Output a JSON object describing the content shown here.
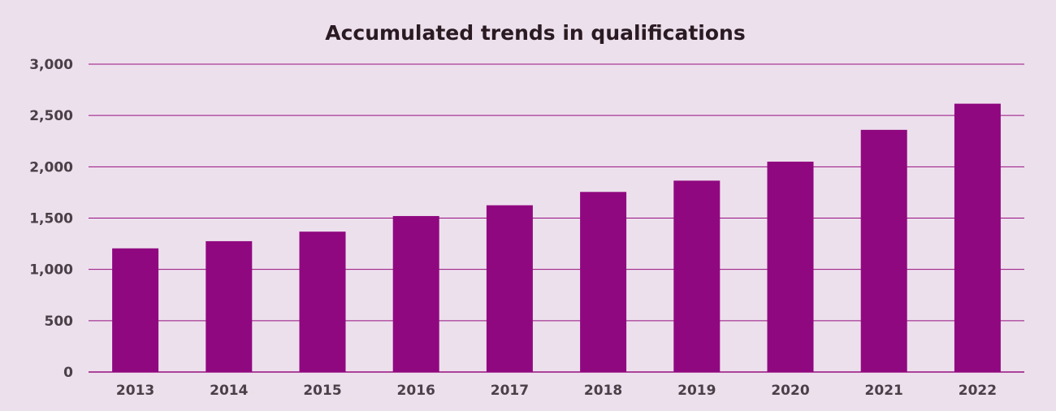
{
  "chart_data": {
    "type": "bar",
    "title": "Accumulated trends in qualifications",
    "xlabel": "",
    "ylabel": "",
    "categories": [
      "2013",
      "2014",
      "2015",
      "2016",
      "2017",
      "2018",
      "2019",
      "2020",
      "2021",
      "2022"
    ],
    "values": [
      1205,
      1275,
      1368,
      1520,
      1625,
      1755,
      1865,
      2050,
      2360,
      2615
    ],
    "ylim": [
      0,
      3000
    ],
    "yticks": [
      0,
      500,
      1000,
      1500,
      2000,
      2500,
      3000
    ],
    "ytick_labels": [
      "0",
      "500",
      "1,000",
      "1,500",
      "2,000",
      "2,500",
      "3,000"
    ],
    "grid": true,
    "legend": "none"
  },
  "colors": {
    "background": "#ede0ed",
    "bar": "#900880",
    "gridline": "#96107f",
    "title": "#2a1a22",
    "tick_label": "#4a4048"
  }
}
